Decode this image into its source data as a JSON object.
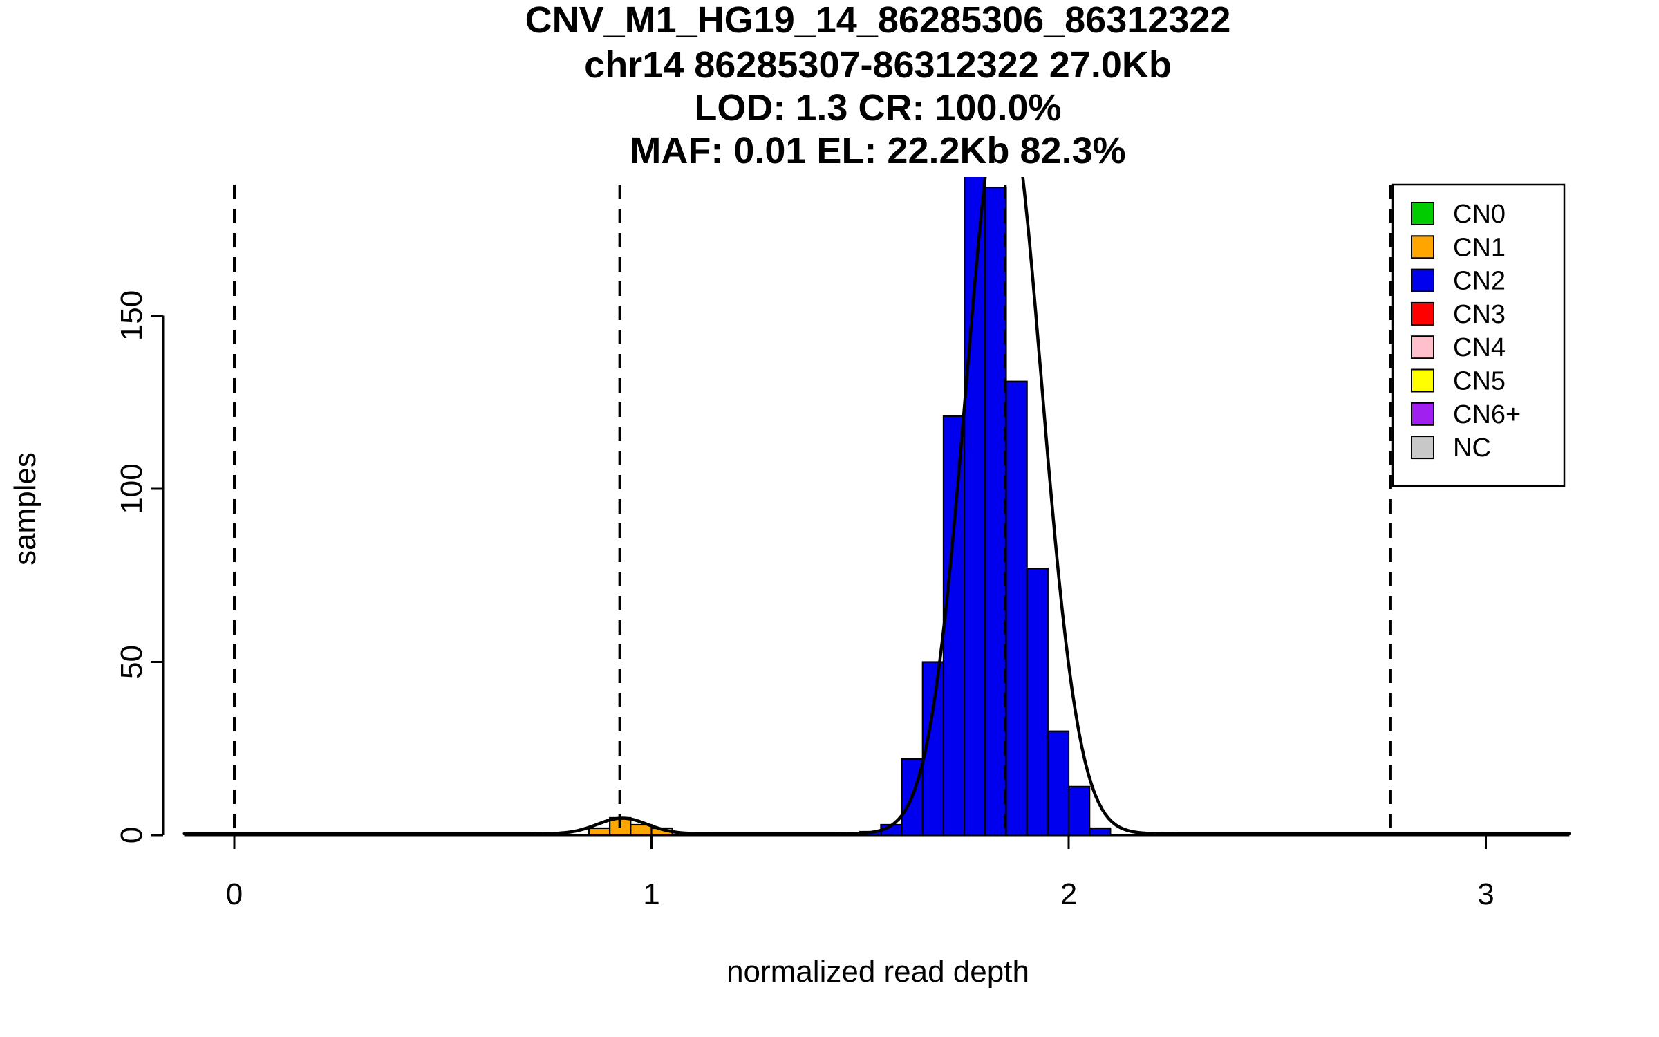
{
  "chart_data": {
    "type": "bar",
    "title_lines": [
      "CNV_M1_HG19_14_86285306_86312322",
      "chr14 86285307-86312322 27.0Kb",
      "LOD: 1.3 CR: 100.0%",
      "MAF: 0.01 EL: 22.2Kb 82.3%"
    ],
    "xlabel": "normalized read depth",
    "ylabel": "samples",
    "x_ticks": [
      0,
      1,
      2,
      3
    ],
    "y_ticks": [
      0,
      50,
      100,
      150
    ],
    "xlim": [
      -0.12,
      3.2
    ],
    "ylim": [
      0,
      190
    ],
    "grid": false,
    "legend_position": "top-right",
    "dashed_lines_x": [
      0,
      0.924,
      1.848,
      2.772
    ],
    "bin_width": 0.05,
    "histogram_series": [
      {
        "name": "CN1",
        "color": "#FFA500",
        "bins": [
          {
            "x0": 0.85,
            "count": 2
          },
          {
            "x0": 0.9,
            "count": 5
          },
          {
            "x0": 0.95,
            "count": 3
          },
          {
            "x0": 1.0,
            "count": 2
          }
        ]
      },
      {
        "name": "CN2",
        "color": "#0000EE",
        "bins": [
          {
            "x0": 1.5,
            "count": 1
          },
          {
            "x0": 1.55,
            "count": 3
          },
          {
            "x0": 1.6,
            "count": 22
          },
          {
            "x0": 1.65,
            "count": 50
          },
          {
            "x0": 1.7,
            "count": 121
          },
          {
            "x0": 1.75,
            "count": 205
          },
          {
            "x0": 1.8,
            "count": 187
          },
          {
            "x0": 1.85,
            "count": 131
          },
          {
            "x0": 1.9,
            "count": 77
          },
          {
            "x0": 1.95,
            "count": 30
          },
          {
            "x0": 2.0,
            "count": 14
          },
          {
            "x0": 2.05,
            "count": 2
          }
        ]
      }
    ],
    "density_curve": {
      "color": "#000000",
      "baseline": 0.4,
      "components": [
        {
          "mean": 0.93,
          "sd": 0.06,
          "amp": 4.5
        },
        {
          "mean": 1.845,
          "sd": 0.09,
          "amp": 215
        }
      ]
    },
    "legend": {
      "items": [
        {
          "label": "CN0",
          "color": "#00CC00"
        },
        {
          "label": "CN1",
          "color": "#FFA500"
        },
        {
          "label": "CN2",
          "color": "#0000EE"
        },
        {
          "label": "CN3",
          "color": "#FF0000"
        },
        {
          "label": "CN4",
          "color": "#FFC0CB"
        },
        {
          "label": "CN5",
          "color": "#FFFF00"
        },
        {
          "label": "CN6+",
          "color": "#A020F0"
        },
        {
          "label": "NC",
          "color": "#C8C8C8"
        }
      ]
    }
  }
}
